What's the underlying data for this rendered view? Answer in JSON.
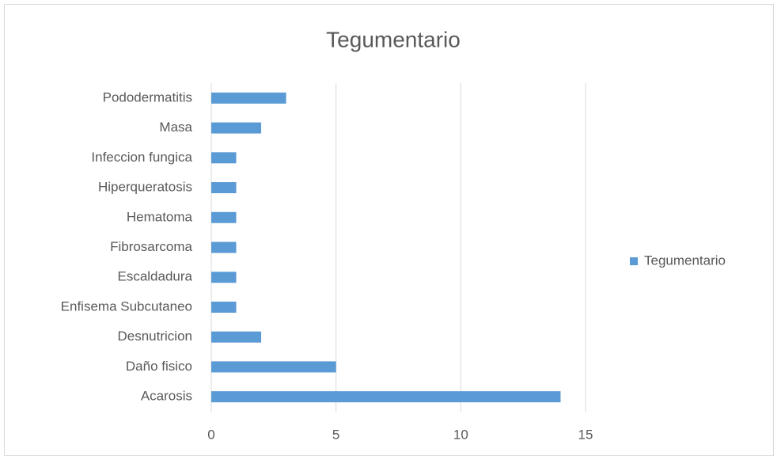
{
  "chart_data": {
    "type": "bar",
    "orientation": "horizontal",
    "title": "Tegumentario",
    "categories": [
      "Acarosis",
      "Daño fisico",
      "Desnutricion",
      "Enfisema Subcutaneo",
      "Escaldadura",
      "Fibrosarcoma",
      "Hematoma",
      "Hiperqueratosis",
      "Infeccion fungica",
      "Masa",
      "Pododermatitis"
    ],
    "series": [
      {
        "name": "Tegumentario",
        "color": "#5b9bd5",
        "values": [
          14,
          5,
          2,
          1,
          1,
          1,
          1,
          1,
          1,
          2,
          3
        ]
      }
    ],
    "xlim": [
      0,
      15
    ],
    "xticks": [
      0,
      5,
      10,
      15
    ],
    "grid": true,
    "legend": "right"
  }
}
